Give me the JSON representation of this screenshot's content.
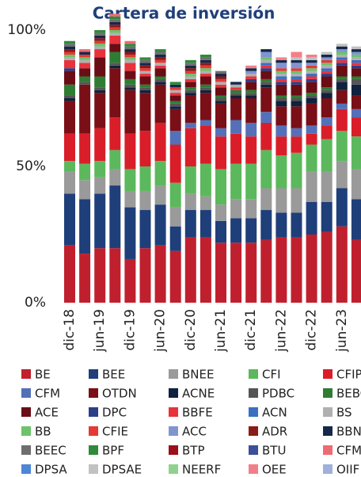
{
  "chart_data": {
    "type": "stacked_bar",
    "title": "Cartera de inversión",
    "categories": [
      "dic-18",
      null,
      "jun-19",
      null,
      "dic-19",
      null,
      "jun-20",
      null,
      "dic-20",
      null,
      "jun-21",
      null,
      "dic-21",
      null,
      "jun-22",
      null,
      "dic-22",
      null,
      "jun-23",
      null
    ],
    "ylim": [
      0,
      100
    ],
    "yticks": [
      {
        "value": 0,
        "label": "0%"
      },
      {
        "value": 50,
        "label": "50%"
      },
      {
        "value": 100,
        "label": "100%"
      }
    ],
    "series": [
      {
        "name": "BE",
        "color": "#c0202e",
        "values": [
          21,
          18,
          20,
          20,
          16,
          20,
          21,
          19,
          24,
          24,
          22,
          22,
          22,
          23,
          24,
          24,
          25,
          26,
          28,
          23
        ]
      },
      {
        "name": "BEE",
        "color": "#1f3f7a",
        "values": [
          19,
          20,
          20,
          23,
          19,
          14,
          15,
          9,
          10,
          10,
          8,
          9,
          9,
          11,
          9,
          9,
          12,
          11,
          14,
          15
        ]
      },
      {
        "name": "BNEE",
        "color": "#9a9a9a",
        "values": [
          8,
          7,
          6,
          6,
          6,
          7,
          7,
          7,
          6,
          5,
          6,
          7,
          7,
          8,
          9,
          9,
          11,
          11,
          10,
          11
        ]
      },
      {
        "name": "CFI",
        "color": "#5cb85c",
        "values": [
          4,
          6,
          6,
          7,
          8,
          9,
          9,
          9,
          10,
          12,
          13,
          13,
          13,
          14,
          12,
          13,
          10,
          12,
          11,
          12
        ]
      },
      {
        "name": "CFIP",
        "color": "#d91e2a",
        "values": [
          10,
          11,
          12,
          12,
          13,
          13,
          14,
          14,
          14,
          14,
          12,
          11,
          10,
          10,
          7,
          6,
          4,
          5,
          8,
          7
        ]
      },
      {
        "name": "CFM",
        "color": "#5470b8",
        "values": [
          0,
          0,
          0,
          0,
          0,
          0,
          0,
          5,
          2,
          2,
          3,
          5,
          5,
          4,
          4,
          3,
          3,
          3,
          2,
          3
        ]
      },
      {
        "name": "OTDN",
        "color": "#7a0f17",
        "values": [
          12,
          18,
          13,
          18,
          16,
          14,
          14,
          8,
          10,
          10,
          9,
          8,
          9,
          9,
          7,
          8,
          8,
          7,
          5,
          5
        ]
      },
      {
        "name": "ACNE",
        "color": "#10223f",
        "values": [
          1,
          0,
          1,
          1,
          1,
          1,
          1,
          1,
          1,
          1,
          1,
          1,
          1,
          1,
          2,
          2,
          2,
          2,
          3,
          4
        ]
      },
      {
        "name": "PDBC",
        "color": "#555555",
        "values": [
          1,
          1,
          1,
          1,
          1,
          1,
          1,
          1,
          1,
          1,
          1,
          1,
          1,
          1,
          1,
          1,
          1,
          1,
          1,
          2
        ]
      },
      {
        "name": "BEBCE",
        "color": "#2e7d32",
        "values": [
          4,
          2,
          4,
          4,
          2,
          1,
          1,
          1,
          1,
          1,
          1,
          1,
          1,
          1,
          1,
          1,
          1,
          1,
          1,
          1
        ]
      },
      {
        "name": "ACE",
        "color": "#6a0d15",
        "values": [
          5,
          3,
          7,
          3,
          3,
          3,
          3,
          2,
          2,
          3,
          3,
          0,
          3,
          3,
          4,
          4,
          4,
          4,
          4,
          3
        ]
      },
      {
        "name": "DPC",
        "color": "#2a3f88",
        "values": [
          1,
          0,
          0,
          0,
          0,
          0,
          0,
          0,
          0,
          0,
          0,
          0,
          1,
          1,
          1,
          1,
          1,
          1,
          1,
          1
        ]
      },
      {
        "name": "BBFE",
        "color": "#e8323c",
        "values": [
          3,
          2,
          3,
          3,
          3,
          1,
          1,
          1,
          1,
          1,
          1,
          1,
          1,
          1,
          1,
          1,
          1,
          1,
          1,
          1
        ]
      },
      {
        "name": "ACN",
        "color": "#3a6fc4",
        "values": [
          0,
          0,
          0,
          0,
          0,
          0,
          0,
          0,
          0,
          0,
          0,
          0,
          0,
          1,
          1,
          1,
          1,
          1,
          1,
          1
        ]
      },
      {
        "name": "BS",
        "color": "#b0b0b0",
        "values": [
          1,
          1,
          1,
          1,
          1,
          1,
          1,
          1,
          1,
          1,
          1,
          1,
          1,
          1,
          1,
          1,
          1,
          1,
          1,
          1
        ]
      },
      {
        "name": "BB",
        "color": "#6cc36c",
        "values": [
          1,
          1,
          1,
          1,
          1,
          0,
          0,
          0,
          1,
          1,
          0,
          0,
          0,
          1,
          1,
          1,
          1,
          1,
          1,
          1
        ]
      },
      {
        "name": "CFIE",
        "color": "#e53935",
        "values": [
          1,
          1,
          1,
          1,
          1,
          1,
          1,
          1,
          1,
          1,
          1,
          0,
          0,
          0,
          1,
          1,
          1,
          1,
          0,
          0
        ]
      },
      {
        "name": "ACC",
        "color": "#8095d0",
        "values": [
          0,
          0,
          0,
          0,
          0,
          0,
          0,
          0,
          0,
          0,
          0,
          0,
          1,
          2,
          2,
          2,
          1,
          1,
          1,
          1
        ]
      },
      {
        "name": "ADR",
        "color": "#8b1a1a",
        "values": [
          1,
          0,
          1,
          1,
          1,
          1,
          1,
          0,
          1,
          1,
          1,
          0,
          0,
          0,
          0,
          0,
          0,
          0,
          0,
          0
        ]
      },
      {
        "name": "BBNEE",
        "color": "#14284a",
        "values": [
          1,
          1,
          1,
          1,
          1,
          1,
          1,
          1,
          1,
          1,
          1,
          1,
          1,
          1,
          1,
          1,
          1,
          1,
          1,
          1
        ]
      },
      {
        "name": "BEEC",
        "color": "#6e6e6e",
        "values": [
          1,
          0,
          1,
          1,
          1,
          1,
          1,
          0,
          1,
          1,
          1,
          0,
          0,
          0,
          0,
          0,
          0,
          0,
          0,
          0
        ]
      },
      {
        "name": "BPF",
        "color": "#2f8a3a",
        "values": [
          1,
          0,
          1,
          1,
          1,
          1,
          1,
          1,
          1,
          1,
          0,
          0,
          0,
          0,
          0,
          0,
          0,
          0,
          0,
          0
        ]
      },
      {
        "name": "BTP",
        "color": "#9c1019",
        "values": [
          0,
          0,
          0,
          0,
          0,
          0,
          0,
          0,
          0,
          0,
          0,
          0,
          0,
          0,
          0,
          0,
          0,
          0,
          0,
          0
        ]
      },
      {
        "name": "BTU",
        "color": "#3b4f9a",
        "values": [
          0,
          0,
          0,
          0,
          0,
          0,
          0,
          0,
          0,
          0,
          0,
          0,
          0,
          0,
          0,
          0,
          0,
          0,
          0,
          0
        ]
      },
      {
        "name": "CFME",
        "color": "#ef6b73",
        "values": [
          0,
          1,
          0,
          1,
          1,
          0,
          0,
          0,
          0,
          0,
          0,
          0,
          0,
          0,
          0,
          0,
          0,
          0,
          0,
          0
        ]
      },
      {
        "name": "DPSA",
        "color": "#4f86d6",
        "values": [
          0,
          0,
          0,
          0,
          0,
          0,
          0,
          0,
          0,
          0,
          0,
          0,
          0,
          0,
          0,
          0,
          0,
          0,
          0,
          0
        ]
      },
      {
        "name": "DPSAE",
        "color": "#c2c2c2",
        "values": [
          0,
          0,
          0,
          0,
          0,
          0,
          0,
          0,
          0,
          0,
          0,
          0,
          0,
          0,
          0,
          1,
          1,
          1,
          1,
          1
        ]
      },
      {
        "name": "NEERF",
        "color": "#8fd28f",
        "values": [
          0,
          0,
          0,
          0,
          0,
          0,
          0,
          0,
          0,
          0,
          0,
          0,
          0,
          0,
          0,
          0,
          0,
          0,
          0,
          0
        ]
      },
      {
        "name": "OEE",
        "color": "#f28088",
        "values": [
          0,
          0,
          0,
          0,
          0,
          0,
          0,
          0,
          0,
          0,
          0,
          0,
          1,
          0,
          1,
          2,
          1,
          0,
          0,
          0
        ]
      },
      {
        "name": "OIIF",
        "color": "#9fb0dc",
        "values": [
          0,
          0,
          0,
          0,
          0,
          0,
          0,
          0,
          0,
          0,
          0,
          0,
          0,
          0,
          0,
          0,
          0,
          0,
          0,
          0
        ]
      }
    ]
  }
}
